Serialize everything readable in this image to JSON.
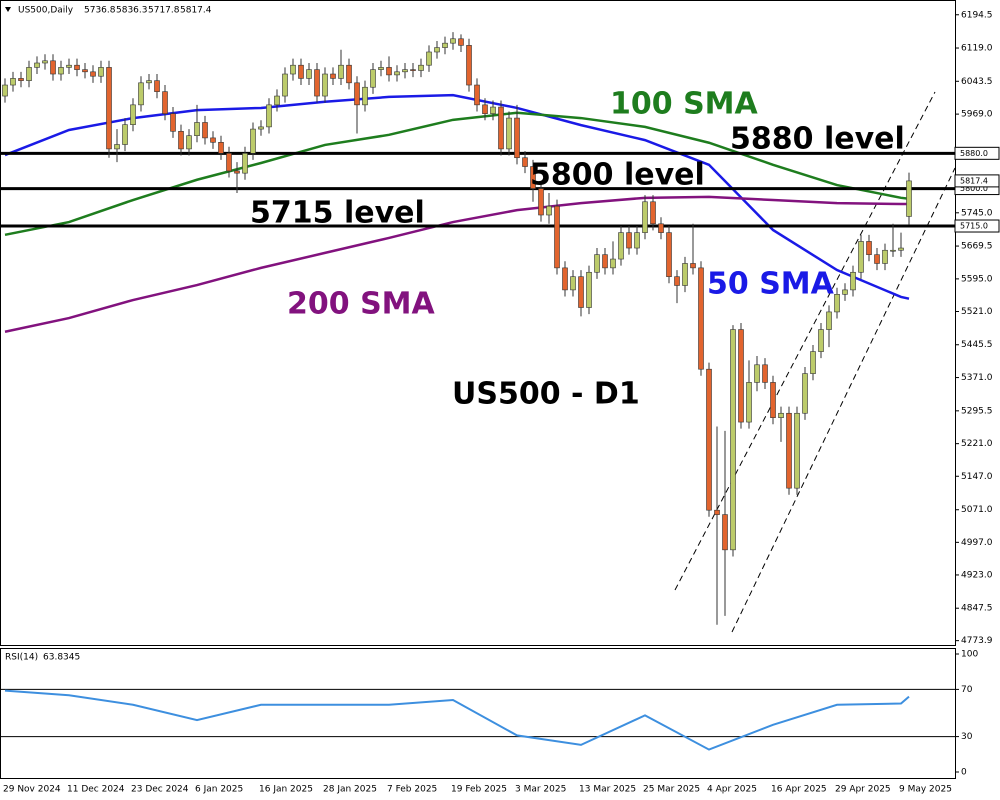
{
  "chart_data": [
    {
      "type": "candlestick",
      "title": "US500,Daily",
      "categories": [
        "29 Nov 2024",
        null,
        null,
        null,
        null,
        null,
        null,
        null,
        "11 Dec 2024",
        null,
        null,
        null,
        null,
        null,
        null,
        null,
        "23 Dec 2024",
        null,
        null,
        null,
        null,
        null,
        null,
        null,
        "6 Jan 2025",
        null,
        null,
        null,
        null,
        null,
        null,
        null,
        "16 Jan 2025",
        null,
        null,
        null,
        null,
        null,
        null,
        null,
        "28 Jan 2025",
        null,
        null,
        null,
        null,
        null,
        null,
        null,
        "7 Feb 2025",
        null,
        null,
        null,
        null,
        null,
        null,
        null,
        "19 Feb 2025",
        null,
        null,
        null,
        null,
        null,
        null,
        null,
        "3 Mar 2025",
        null,
        null,
        null,
        null,
        null,
        null,
        null,
        "13 Mar 2025",
        null,
        null,
        null,
        null,
        null,
        null,
        null,
        "25 Mar 2025",
        null,
        null,
        null,
        null,
        null,
        null,
        null,
        "4 Apr 2025",
        null,
        null,
        null,
        null,
        null,
        null,
        null,
        "16 Apr 2025",
        null,
        null,
        null,
        null,
        null,
        null,
        null,
        "29 Apr 2025",
        null,
        null,
        null,
        null,
        null,
        null,
        null,
        "9 May 2025",
        null
      ],
      "open": [
        6010,
        6035,
        6050,
        6045,
        6075,
        6085,
        6090,
        6060,
        6075,
        6080,
        6070,
        6065,
        6055,
        6075,
        5890,
        5900,
        5945,
        5990,
        6040,
        6045,
        6020,
        5970,
        5930,
        5890,
        5920,
        5950,
        5915,
        5905,
        5880,
        5840,
        5835,
        5880,
        5935,
        5940,
        5990,
        6010,
        6060,
        6080,
        6050,
        6070,
        6010,
        6060,
        6050,
        6080,
        6040,
        5990,
        6030,
        6070,
        6075,
        6058,
        6065,
        6070,
        6068,
        6080,
        6110,
        6120,
        6130,
        6140,
        6125,
        6035,
        5990,
        5970,
        5985,
        5890,
        5960,
        5870,
        5850,
        5800,
        5740,
        5760,
        5620,
        5570,
        5600,
        5530,
        5610,
        5650,
        5620,
        5640,
        5700,
        5665,
        5700,
        5770,
        5720,
        5700,
        5600,
        5580,
        5630,
        5620,
        5390,
        5070,
        5060,
        4980,
        5480,
        5270,
        5360,
        5400,
        5360,
        5280,
        5290,
        5120,
        5290,
        5380,
        5430,
        5480,
        5520,
        5560,
        5570,
        5610,
        5680,
        5650,
        5630,
        5660,
        5660,
        5736.8
      ],
      "high": [
        6050,
        6065,
        6065,
        6090,
        6100,
        6105,
        6105,
        6090,
        6095,
        6095,
        6085,
        6080,
        6090,
        6090,
        5935,
        5960,
        6005,
        6055,
        6060,
        6060,
        6035,
        5985,
        5945,
        5935,
        5990,
        5965,
        5930,
        5920,
        5895,
        5860,
        5895,
        5950,
        5955,
        6005,
        6025,
        6075,
        6095,
        6095,
        6085,
        6085,
        6075,
        6075,
        6115,
        6095,
        6055,
        6045,
        6085,
        6090,
        6100,
        6080,
        6085,
        6085,
        6095,
        6125,
        6135,
        6145,
        6155,
        6150,
        6140,
        6050,
        6005,
        6000,
        6000,
        5975,
        5990,
        5885,
        5865,
        5815,
        5790,
        5775,
        5635,
        5615,
        5615,
        5625,
        5665,
        5665,
        5680,
        5715,
        5715,
        5715,
        5785,
        5785,
        5735,
        5715,
        5615,
        5645,
        5720,
        5635,
        5405,
        5260,
        5250,
        5490,
        5495,
        5410,
        5420,
        5415,
        5375,
        5305,
        5305,
        5305,
        5395,
        5445,
        5495,
        5535,
        5575,
        5585,
        5625,
        5695,
        5695,
        5665,
        5675,
        5720,
        5700,
        5836.3
      ],
      "low": [
        5995,
        6020,
        6030,
        6030,
        6060,
        6070,
        6045,
        6045,
        6060,
        6055,
        6050,
        6040,
        6040,
        5870,
        5860,
        5885,
        5930,
        5975,
        6025,
        6005,
        5955,
        5915,
        5875,
        5875,
        5905,
        5900,
        5890,
        5865,
        5825,
        5790,
        5820,
        5865,
        5920,
        5925,
        5975,
        5995,
        6045,
        6035,
        6035,
        5995,
        5995,
        6035,
        6035,
        6025,
        5925,
        5975,
        6015,
        6055,
        6043,
        6043,
        6050,
        6053,
        6053,
        6065,
        6095,
        6105,
        6115,
        6110,
        6020,
        5975,
        5955,
        5955,
        5875,
        5875,
        5855,
        5835,
        5770,
        5725,
        5720,
        5605,
        5555,
        5555,
        5510,
        5515,
        5595,
        5605,
        5605,
        5625,
        5650,
        5650,
        5685,
        5705,
        5685,
        5585,
        5540,
        5565,
        5605,
        5375,
        5055,
        4810,
        4830,
        4965,
        5255,
        5255,
        5340,
        5345,
        5265,
        5225,
        5105,
        5105,
        5275,
        5365,
        5415,
        5440,
        5505,
        5545,
        5555,
        5595,
        5635,
        5615,
        5615,
        5645,
        5645,
        5717.8
      ],
      "close": [
        6035,
        6050,
        6045,
        6075,
        6085,
        6090,
        6060,
        6075,
        6080,
        6070,
        6065,
        6055,
        6075,
        5890,
        5900,
        5945,
        5990,
        6040,
        6045,
        6020,
        5970,
        5930,
        5890,
        5920,
        5950,
        5915,
        5905,
        5880,
        5840,
        5835,
        5880,
        5935,
        5940,
        5990,
        6010,
        6060,
        6080,
        6050,
        6070,
        6010,
        6060,
        6050,
        6080,
        6040,
        5990,
        6030,
        6070,
        6075,
        6058,
        6065,
        6070,
        6068,
        6080,
        6110,
        6120,
        6130,
        6140,
        6125,
        6035,
        5990,
        5970,
        5985,
        5890,
        5960,
        5870,
        5850,
        5800,
        5740,
        5760,
        5620,
        5570,
        5600,
        5530,
        5610,
        5650,
        5620,
        5640,
        5700,
        5665,
        5700,
        5770,
        5720,
        5700,
        5600,
        5580,
        5630,
        5620,
        5390,
        5070,
        5060,
        4980,
        5480,
        5270,
        5360,
        5400,
        5360,
        5280,
        5290,
        5120,
        5290,
        5380,
        5430,
        5480,
        5520,
        5560,
        5570,
        5610,
        5680,
        5650,
        5630,
        5660,
        5660,
        5665,
        5817.4
      ],
      "up_color": "#bccb6a",
      "down_color": "#e2642e",
      "ylim": [
        4764,
        6228
      ],
      "yticks": [
        6194.5,
        {
          "value": 6119,
          "label": "6119.0"
        },
        6043.5,
        {
          "value": 5969,
          "label": "5969.0"
        },
        {
          "value": 5745,
          "label": "5745.0"
        },
        5669.5,
        {
          "value": 5595,
          "label": "5595.0"
        },
        {
          "value": 5521,
          "label": "5521.0"
        },
        5445.5,
        {
          "value": 5371,
          "label": "5371.0"
        },
        5295.5,
        {
          "value": 5221,
          "label": "5221.0"
        },
        {
          "value": 5147,
          "label": "5147.0"
        },
        {
          "value": 5071,
          "label": "5071.0"
        },
        {
          "value": 4997,
          "label": "4997.0"
        },
        {
          "value": 4923,
          "label": "4923.0"
        },
        4847.5,
        4773.9
      ],
      "grid": false,
      "sma": [
        {
          "name": "50 SMA",
          "color": "#1a1ae6",
          "x": [
            0,
            8,
            16,
            24,
            32,
            40,
            48,
            56,
            64,
            72,
            80,
            88,
            96,
            104,
            112,
            113
          ],
          "values": [
            5876,
            5933,
            5960,
            5978,
            5983,
            5997,
            6008,
            6012,
            5983,
            5944,
            5910,
            5854,
            5706,
            5615,
            5554,
            5550
          ]
        },
        {
          "name": "100 SMA",
          "color": "#1e7d1e",
          "x": [
            0,
            8,
            16,
            24,
            32,
            40,
            48,
            56,
            64,
            72,
            80,
            88,
            96,
            104,
            112,
            113
          ],
          "values": [
            5695,
            5724,
            5774,
            5820,
            5858,
            5899,
            5922,
            5956,
            5972,
            5960,
            5940,
            5904,
            5854,
            5808,
            5779,
            5777
          ]
        },
        {
          "name": "200 SMA",
          "color": "#82127e",
          "x": [
            0,
            8,
            16,
            24,
            32,
            40,
            48,
            56,
            64,
            72,
            80,
            88,
            96,
            104,
            112,
            113
          ],
          "values": [
            5475,
            5506,
            5547,
            5581,
            5620,
            5654,
            5688,
            5724,
            5751,
            5767,
            5779,
            5781,
            5774,
            5767,
            5765,
            5765
          ]
        }
      ],
      "levels": [
        {
          "value": 5880,
          "label": "5880.0"
        },
        {
          "value": 5800,
          "label": "5800.0"
        },
        {
          "value": 5715,
          "label": "5715.0"
        }
      ],
      "annotations": [
        "5880 level",
        "5800 level",
        "5715 level",
        "US500 - D1"
      ]
    },
    {
      "type": "line",
      "title": "RSI(14)",
      "x": [
        0,
        8,
        16,
        24,
        32,
        40,
        48,
        56,
        64,
        72,
        80,
        88,
        96,
        104,
        112,
        113
      ],
      "values": [
        69,
        65,
        57,
        44,
        57,
        57,
        57,
        61,
        31,
        23,
        48,
        19,
        40,
        57,
        58,
        63.8345
      ],
      "color": "#3d8fdf",
      "ylim": [
        0,
        100
      ],
      "yticks": [
        100,
        70,
        30,
        0
      ]
    }
  ]
}
